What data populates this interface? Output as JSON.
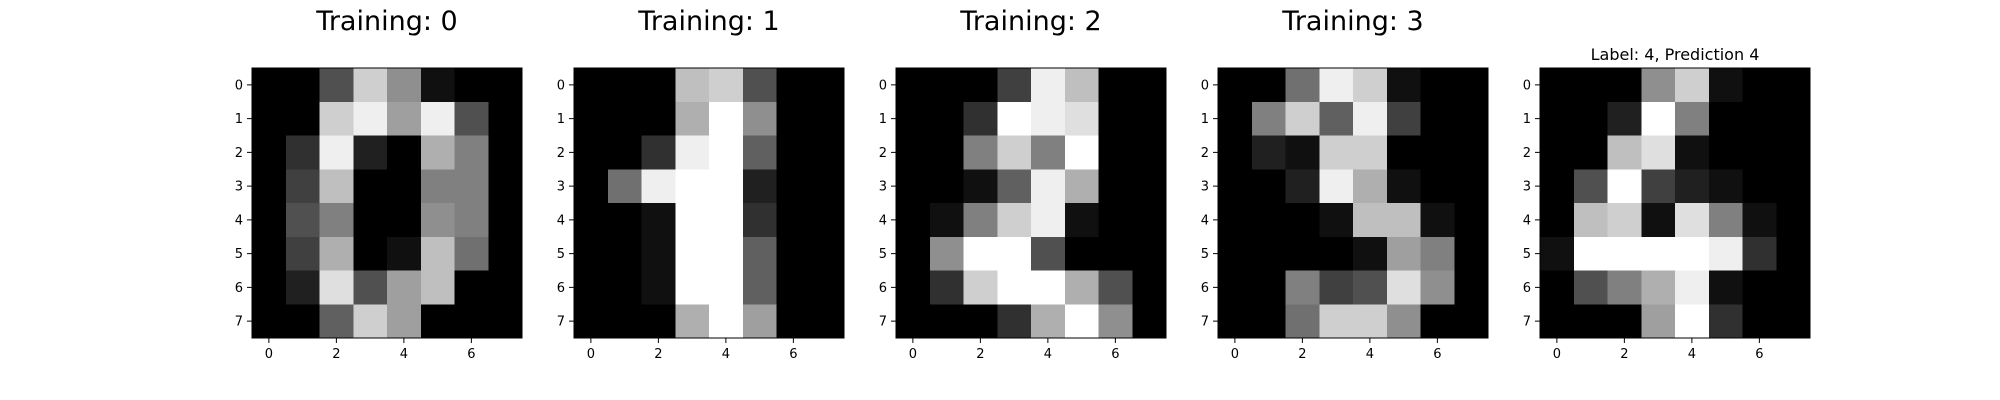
{
  "chart_data": [
    {
      "type": "heatmap",
      "title": "Training: 0",
      "colormap": "gray_r",
      "xticks": [
        "0",
        "2",
        "4",
        "6"
      ],
      "yticks": [
        "0",
        "1",
        "2",
        "3",
        "4",
        "5",
        "6",
        "7"
      ],
      "values": [
        [
          0,
          0,
          5,
          13,
          9,
          1,
          0,
          0
        ],
        [
          0,
          0,
          13,
          15,
          10,
          15,
          5,
          0
        ],
        [
          0,
          3,
          15,
          2,
          0,
          11,
          8,
          0
        ],
        [
          0,
          4,
          12,
          0,
          0,
          8,
          8,
          0
        ],
        [
          0,
          5,
          8,
          0,
          0,
          9,
          8,
          0
        ],
        [
          0,
          4,
          11,
          0,
          1,
          12,
          7,
          0
        ],
        [
          0,
          2,
          14,
          5,
          10,
          12,
          0,
          0
        ],
        [
          0,
          0,
          6,
          13,
          10,
          0,
          0,
          0
        ]
      ]
    },
    {
      "type": "heatmap",
      "title": "Training: 1",
      "colormap": "gray_r",
      "xticks": [
        "0",
        "2",
        "4",
        "6"
      ],
      "yticks": [
        "0",
        "1",
        "2",
        "3",
        "4",
        "5",
        "6",
        "7"
      ],
      "values": [
        [
          0,
          0,
          0,
          12,
          13,
          5,
          0,
          0
        ],
        [
          0,
          0,
          0,
          11,
          16,
          9,
          0,
          0
        ],
        [
          0,
          0,
          3,
          15,
          16,
          6,
          0,
          0
        ],
        [
          0,
          7,
          15,
          16,
          16,
          2,
          0,
          0
        ],
        [
          0,
          0,
          1,
          16,
          16,
          3,
          0,
          0
        ],
        [
          0,
          0,
          1,
          16,
          16,
          6,
          0,
          0
        ],
        [
          0,
          0,
          1,
          16,
          16,
          6,
          0,
          0
        ],
        [
          0,
          0,
          0,
          11,
          16,
          10,
          0,
          0
        ]
      ]
    },
    {
      "type": "heatmap",
      "title": "Training: 2",
      "colormap": "gray_r",
      "xticks": [
        "0",
        "2",
        "4",
        "6"
      ],
      "yticks": [
        "0",
        "1",
        "2",
        "3",
        "4",
        "5",
        "6",
        "7"
      ],
      "values": [
        [
          0,
          0,
          0,
          4,
          15,
          12,
          0,
          0
        ],
        [
          0,
          0,
          3,
          16,
          15,
          14,
          0,
          0
        ],
        [
          0,
          0,
          8,
          13,
          8,
          16,
          0,
          0
        ],
        [
          0,
          0,
          1,
          6,
          15,
          11,
          0,
          0
        ],
        [
          0,
          1,
          8,
          13,
          15,
          1,
          0,
          0
        ],
        [
          0,
          9,
          16,
          16,
          5,
          0,
          0,
          0
        ],
        [
          0,
          3,
          13,
          16,
          16,
          11,
          5,
          0
        ],
        [
          0,
          0,
          0,
          3,
          11,
          16,
          9,
          0
        ]
      ]
    },
    {
      "type": "heatmap",
      "title": "Training: 3",
      "colormap": "gray_r",
      "xticks": [
        "0",
        "2",
        "4",
        "6"
      ],
      "yticks": [
        "0",
        "1",
        "2",
        "3",
        "4",
        "5",
        "6",
        "7"
      ],
      "values": [
        [
          0,
          0,
          7,
          15,
          13,
          1,
          0,
          0
        ],
        [
          0,
          8,
          13,
          6,
          15,
          4,
          0,
          0
        ],
        [
          0,
          2,
          1,
          13,
          13,
          0,
          0,
          0
        ],
        [
          0,
          0,
          2,
          15,
          11,
          1,
          0,
          0
        ],
        [
          0,
          0,
          0,
          1,
          12,
          12,
          1,
          0
        ],
        [
          0,
          0,
          0,
          0,
          1,
          10,
          8,
          0
        ],
        [
          0,
          0,
          8,
          4,
          5,
          14,
          9,
          0
        ],
        [
          0,
          0,
          7,
          13,
          13,
          9,
          0,
          0
        ]
      ]
    },
    {
      "type": "heatmap",
      "title": "Label: 4, Prediction 4",
      "colormap": "gray_r",
      "xticks": [
        "0",
        "2",
        "4",
        "6"
      ],
      "yticks": [
        "0",
        "1",
        "2",
        "3",
        "4",
        "5",
        "6",
        "7"
      ],
      "values": [
        [
          0,
          0,
          0,
          9,
          13,
          1,
          0,
          0
        ],
        [
          0,
          0,
          2,
          16,
          8,
          0,
          0,
          0
        ],
        [
          0,
          0,
          12,
          14,
          1,
          0,
          0,
          0
        ],
        [
          0,
          5,
          16,
          4,
          2,
          1,
          0,
          0
        ],
        [
          0,
          12,
          13,
          1,
          14,
          8,
          1,
          0
        ],
        [
          1,
          16,
          16,
          16,
          16,
          15,
          3,
          0
        ],
        [
          0,
          5,
          8,
          11,
          15,
          1,
          0,
          0
        ],
        [
          0,
          0,
          0,
          10,
          16,
          3,
          0,
          0
        ]
      ]
    }
  ]
}
